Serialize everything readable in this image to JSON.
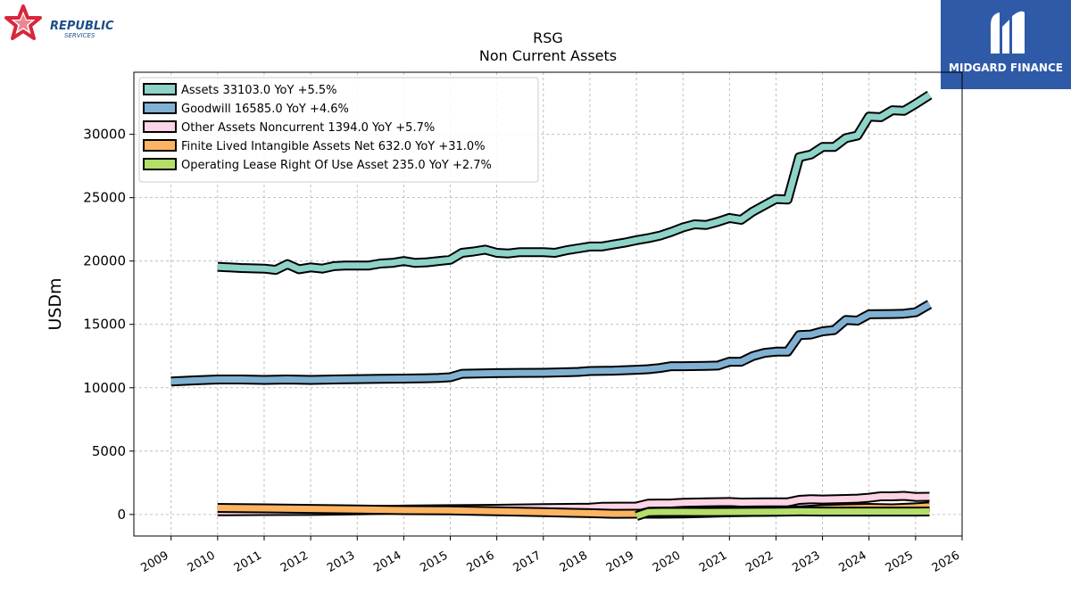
{
  "brand": {
    "left_logo_line1": "REPUBLIC",
    "left_logo_line2": "SERVICES",
    "right_logo_text": "MIDGARD FINANCE",
    "left_logo_color": "#d8263c",
    "left_logo_text_color": "#1b4f8a",
    "right_logo_bg": "#2f5aa8"
  },
  "chart_data": {
    "type": "line",
    "title": "RSG",
    "subtitle": "Non Current  Assets",
    "ylabel": "USDm",
    "xlabel": "",
    "xlim": [
      2008.2,
      2026.0
    ],
    "ylim": [
      -1700,
      34900
    ],
    "yticks": [
      0,
      5000,
      10000,
      15000,
      20000,
      25000,
      30000
    ],
    "xticks": [
      2009,
      2010,
      2011,
      2012,
      2013,
      2014,
      2015,
      2016,
      2017,
      2018,
      2019,
      2020,
      2021,
      2022,
      2023,
      2024,
      2025,
      2026
    ],
    "grid": true,
    "legend_position": "top-left",
    "series": [
      {
        "name": "Assets",
        "legend": "Assets  33103.0 YoY +5.5%",
        "color": "#8ed3c7",
        "points": [
          [
            2010.0,
            19550
          ],
          [
            2010.5,
            19450
          ],
          [
            2011.0,
            19400
          ],
          [
            2011.25,
            19300
          ],
          [
            2011.5,
            19750
          ],
          [
            2011.75,
            19350
          ],
          [
            2012.0,
            19500
          ],
          [
            2012.25,
            19400
          ],
          [
            2012.5,
            19600
          ],
          [
            2012.75,
            19650
          ],
          [
            2013.0,
            19650
          ],
          [
            2013.25,
            19650
          ],
          [
            2013.5,
            19800
          ],
          [
            2013.75,
            19850
          ],
          [
            2014.0,
            20000
          ],
          [
            2014.25,
            19850
          ],
          [
            2014.5,
            19900
          ],
          [
            2014.75,
            20000
          ],
          [
            2015.0,
            20100
          ],
          [
            2015.25,
            20650
          ],
          [
            2015.5,
            20750
          ],
          [
            2015.75,
            20900
          ],
          [
            2016.0,
            20650
          ],
          [
            2016.25,
            20600
          ],
          [
            2016.5,
            20700
          ],
          [
            2016.75,
            20700
          ],
          [
            2017.0,
            20700
          ],
          [
            2017.25,
            20650
          ],
          [
            2017.5,
            20850
          ],
          [
            2017.75,
            21000
          ],
          [
            2018.0,
            21150
          ],
          [
            2018.25,
            21150
          ],
          [
            2018.5,
            21300
          ],
          [
            2018.75,
            21450
          ],
          [
            2019.0,
            21650
          ],
          [
            2019.25,
            21800
          ],
          [
            2019.5,
            22000
          ],
          [
            2019.75,
            22300
          ],
          [
            2020.0,
            22650
          ],
          [
            2020.25,
            22900
          ],
          [
            2020.5,
            22850
          ],
          [
            2020.75,
            23100
          ],
          [
            2021.0,
            23400
          ],
          [
            2021.25,
            23250
          ],
          [
            2021.5,
            23900
          ],
          [
            2021.75,
            24400
          ],
          [
            2022.0,
            24900
          ],
          [
            2022.25,
            24850
          ],
          [
            2022.5,
            28200
          ],
          [
            2022.75,
            28400
          ],
          [
            2023.0,
            29000
          ],
          [
            2023.25,
            29000
          ],
          [
            2023.5,
            29700
          ],
          [
            2023.75,
            29900
          ],
          [
            2024.0,
            31400
          ],
          [
            2024.25,
            31350
          ],
          [
            2024.5,
            31900
          ],
          [
            2024.75,
            31850
          ],
          [
            2025.0,
            32400
          ],
          [
            2025.3,
            33103
          ]
        ]
      },
      {
        "name": "Goodwill",
        "legend": "Goodwill  16585.0 YoY +4.6%",
        "color": "#80b1d3",
        "points": [
          [
            2009.0,
            10500
          ],
          [
            2009.5,
            10580
          ],
          [
            2010.0,
            10650
          ],
          [
            2010.5,
            10650
          ],
          [
            2011.0,
            10620
          ],
          [
            2011.5,
            10650
          ],
          [
            2012.0,
            10620
          ],
          [
            2012.5,
            10650
          ],
          [
            2013.0,
            10680
          ],
          [
            2013.5,
            10700
          ],
          [
            2014.0,
            10720
          ],
          [
            2014.5,
            10750
          ],
          [
            2014.75,
            10770
          ],
          [
            2015.0,
            10830
          ],
          [
            2015.25,
            11100
          ],
          [
            2015.5,
            11120
          ],
          [
            2016.0,
            11150
          ],
          [
            2016.5,
            11170
          ],
          [
            2017.0,
            11180
          ],
          [
            2017.5,
            11220
          ],
          [
            2017.75,
            11250
          ],
          [
            2018.0,
            11320
          ],
          [
            2018.5,
            11350
          ],
          [
            2019.0,
            11420
          ],
          [
            2019.25,
            11460
          ],
          [
            2019.5,
            11550
          ],
          [
            2019.75,
            11700
          ],
          [
            2020.0,
            11700
          ],
          [
            2020.5,
            11720
          ],
          [
            2020.75,
            11750
          ],
          [
            2021.0,
            12050
          ],
          [
            2021.25,
            12050
          ],
          [
            2021.5,
            12500
          ],
          [
            2021.75,
            12750
          ],
          [
            2022.0,
            12850
          ],
          [
            2022.25,
            12850
          ],
          [
            2022.5,
            14150
          ],
          [
            2022.75,
            14200
          ],
          [
            2023.0,
            14450
          ],
          [
            2023.25,
            14550
          ],
          [
            2023.5,
            15350
          ],
          [
            2023.75,
            15300
          ],
          [
            2024.0,
            15800
          ],
          [
            2024.5,
            15820
          ],
          [
            2024.75,
            15850
          ],
          [
            2025.0,
            15950
          ],
          [
            2025.3,
            16585
          ]
        ]
      },
      {
        "name": "Other Assets Noncurrent",
        "legend": "Other Assets Noncurrent  1394.0 YoY +5.7%",
        "color": "#fcd4e6",
        "points": [
          [
            2010.0,
            250
          ],
          [
            2011.0,
            270
          ],
          [
            2012.0,
            280
          ],
          [
            2013.0,
            320
          ],
          [
            2014.0,
            380
          ],
          [
            2015.0,
            420
          ],
          [
            2016.0,
            450
          ],
          [
            2017.0,
            500
          ],
          [
            2018.0,
            540
          ],
          [
            2018.25,
            600
          ],
          [
            2019.0,
            620
          ],
          [
            2019.25,
            850
          ],
          [
            2019.75,
            870
          ],
          [
            2020.0,
            920
          ],
          [
            2020.5,
            960
          ],
          [
            2021.0,
            980
          ],
          [
            2021.25,
            940
          ],
          [
            2021.75,
            960
          ],
          [
            2022.0,
            960
          ],
          [
            2022.25,
            960
          ],
          [
            2022.5,
            1150
          ],
          [
            2022.75,
            1200
          ],
          [
            2023.0,
            1180
          ],
          [
            2023.5,
            1220
          ],
          [
            2023.75,
            1250
          ],
          [
            2024.0,
            1320
          ],
          [
            2024.25,
            1430
          ],
          [
            2024.5,
            1430
          ],
          [
            2024.75,
            1470
          ],
          [
            2025.0,
            1380
          ],
          [
            2025.3,
            1394
          ]
        ]
      },
      {
        "name": "Finite Lived Intangible Assets Net",
        "legend": "Finite Lived Intangible Assets Net  632.0 YoY +31.0%",
        "color": "#fdb462",
        "points": [
          [
            2010.0,
            520
          ],
          [
            2011.0,
            480
          ],
          [
            2012.0,
            440
          ],
          [
            2013.0,
            390
          ],
          [
            2014.0,
            340
          ],
          [
            2015.0,
            320
          ],
          [
            2016.0,
            260
          ],
          [
            2017.0,
            180
          ],
          [
            2018.0,
            100
          ],
          [
            2018.5,
            50
          ],
          [
            2019.0,
            60
          ],
          [
            2019.5,
            60
          ],
          [
            2020.0,
            80
          ],
          [
            2020.5,
            120
          ],
          [
            2021.0,
            170
          ],
          [
            2021.5,
            200
          ],
          [
            2022.0,
            230
          ],
          [
            2022.5,
            320
          ],
          [
            2023.0,
            420
          ],
          [
            2023.5,
            480
          ],
          [
            2024.0,
            520
          ],
          [
            2024.5,
            480
          ],
          [
            2025.0,
            560
          ],
          [
            2025.3,
            632
          ]
        ]
      },
      {
        "name": "Operating Lease Right Of Use Asset",
        "legend": "Operating Lease Right Of Use Asset  235.0 YoY +2.7%",
        "color": "#b3de69",
        "points": [
          [
            2019.0,
            -130
          ],
          [
            2019.25,
            180
          ],
          [
            2019.5,
            200
          ],
          [
            2020.0,
            200
          ],
          [
            2020.5,
            190
          ],
          [
            2021.0,
            200
          ],
          [
            2021.5,
            210
          ],
          [
            2022.0,
            220
          ],
          [
            2022.5,
            240
          ],
          [
            2023.0,
            230
          ],
          [
            2023.5,
            230
          ],
          [
            2024.0,
            230
          ],
          [
            2024.5,
            228
          ],
          [
            2025.0,
            232
          ],
          [
            2025.3,
            235
          ]
        ]
      }
    ]
  }
}
